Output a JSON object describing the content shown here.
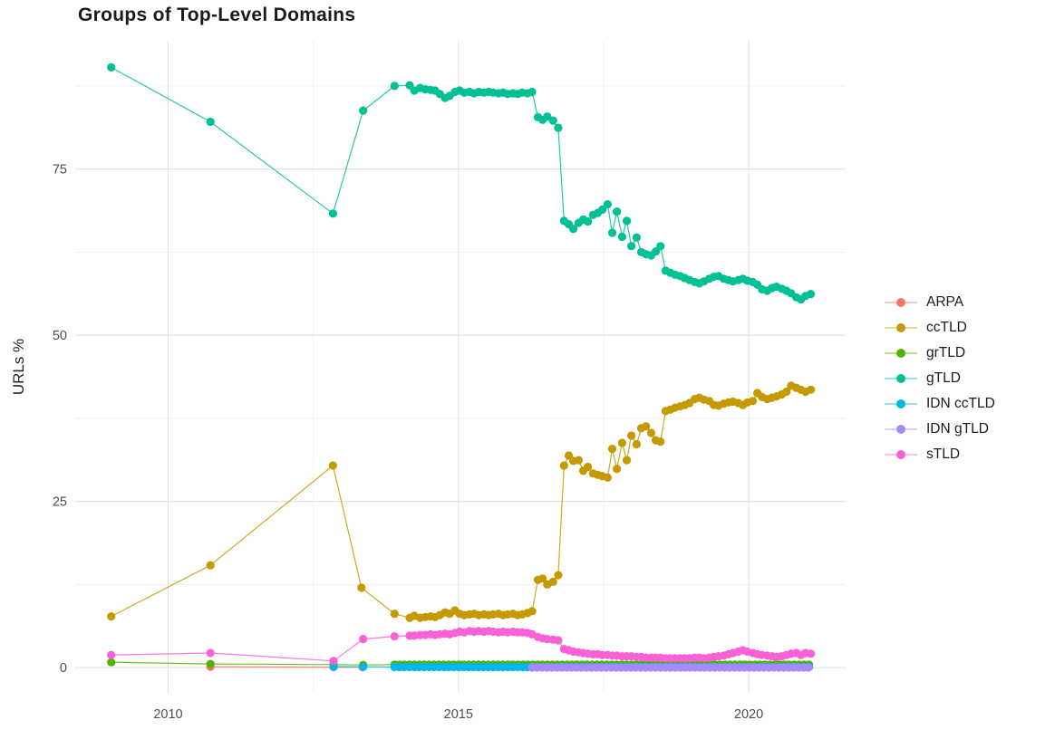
{
  "chart_data": {
    "type": "line",
    "title": "Groups of Top-Level Domains",
    "xlabel": "",
    "ylabel": "URLs %",
    "grid": true,
    "legend_position": "right",
    "xlim": [
      2008.4,
      2021.67
    ],
    "ylim": [
      -3.8,
      94.3
    ],
    "x_tick_values": [
      2010,
      2015,
      2020
    ],
    "x_tick_labels": [
      "2010",
      "2015",
      "2020"
    ],
    "x_minor_values": [
      2012.5,
      2017.5
    ],
    "y_tick_values": [
      0,
      25,
      50,
      75
    ],
    "y_tick_labels": [
      "0",
      "25",
      "50",
      "75"
    ],
    "y_minor_values": [
      12.5,
      37.5,
      62.5,
      87.5
    ],
    "x_dense": [
      2013.9,
      2014.16,
      2014.24,
      2014.34,
      2014.43,
      2014.52,
      2014.6,
      2014.68,
      2014.77,
      2014.85,
      2014.94,
      2015.02,
      2015.1,
      2015.19,
      2015.27,
      2015.35,
      2015.44,
      2015.52,
      2015.6,
      2015.69,
      2015.77,
      2015.85,
      2015.94,
      2016.02,
      2016.1,
      2016.19,
      2016.27,
      2016.37,
      2016.45,
      2016.53,
      2016.63,
      2016.72,
      2016.82,
      2016.9,
      2016.98,
      2017.07,
      2017.15,
      2017.23,
      2017.32,
      2017.4,
      2017.48,
      2017.57,
      2017.65,
      2017.73,
      2017.82,
      2017.9,
      2017.98,
      2018.07,
      2018.15,
      2018.23,
      2018.32,
      2018.4,
      2018.48,
      2018.57,
      2018.65,
      2018.73,
      2018.82,
      2018.9,
      2018.98,
      2019.07,
      2019.15,
      2019.23,
      2019.32,
      2019.4,
      2019.48,
      2019.57,
      2019.65,
      2019.73,
      2019.82,
      2019.9,
      2019.98,
      2020.07,
      2020.15,
      2020.23,
      2020.32,
      2020.4,
      2020.48,
      2020.57,
      2020.65,
      2020.73,
      2020.82,
      2020.9,
      2020.98,
      2021.07
    ],
    "series": [
      {
        "name": "ARPA",
        "color": "#F8766D",
        "points": [
          [
            2010.73,
            0.12
          ],
          [
            2012.85,
            0.07
          ],
          [
            2013.35,
            0.05
          ]
        ]
      },
      {
        "name": "ccTLD",
        "color": "#C49A00",
        "points": [
          [
            2009.02,
            7.7
          ],
          [
            2010.73,
            15.4
          ],
          [
            2012.84,
            30.4
          ],
          [
            2013.33,
            12.0
          ]
        ],
        "values": [
          8.1,
          7.5,
          7.8,
          7.5,
          7.6,
          7.7,
          7.6,
          7.9,
          8.3,
          8.1,
          8.6,
          8.1,
          7.9,
          8.0,
          8.1,
          7.9,
          8.0,
          7.9,
          8.0,
          8.1,
          7.9,
          8.0,
          8.1,
          7.9,
          8.0,
          8.2,
          8.5,
          13.2,
          13.4,
          12.5,
          12.9,
          13.9,
          30.4,
          31.9,
          31.1,
          31.2,
          29.6,
          30.2,
          29.2,
          29.0,
          28.8,
          28.6,
          32.9,
          29.9,
          33.8,
          31.2,
          34.9,
          33.6,
          36.0,
          36.3,
          35.3,
          34.2,
          34.0,
          38.6,
          38.8,
          39.1,
          39.3,
          39.5,
          39.8,
          40.4,
          40.6,
          40.3,
          40.1,
          39.5,
          39.4,
          39.7,
          39.9,
          40.0,
          39.8,
          39.5,
          39.9,
          40.1,
          41.3,
          40.7,
          40.4,
          40.6,
          40.8,
          41.1,
          41.5,
          42.4,
          42.1,
          41.8,
          41.5,
          41.8
        ]
      },
      {
        "name": "grTLD",
        "color": "#53B400",
        "points": [
          [
            2009.02,
            0.8
          ],
          [
            2010.73,
            0.55
          ],
          [
            2012.85,
            0.45
          ],
          [
            2013.36,
            0.4
          ]
        ],
        "train": {
          "from": 2013.9,
          "to": 2021.07,
          "step": 0.085,
          "value": 0.45
        }
      },
      {
        "name": "gTLD",
        "color": "#00C094",
        "points": [
          [
            2009.02,
            90.3
          ],
          [
            2010.73,
            82.1
          ],
          [
            2012.84,
            68.3
          ],
          [
            2013.36,
            83.8
          ]
        ],
        "values": [
          87.5,
          87.6,
          86.8,
          87.2,
          87.0,
          86.9,
          86.8,
          86.3,
          85.7,
          86.0,
          86.6,
          86.8,
          86.5,
          86.6,
          86.4,
          86.6,
          86.5,
          86.6,
          86.5,
          86.4,
          86.5,
          86.3,
          86.4,
          86.3,
          86.5,
          86.4,
          86.6,
          82.8,
          82.4,
          82.9,
          82.3,
          81.2,
          67.2,
          66.7,
          66.0,
          66.9,
          67.4,
          67.1,
          68.1,
          68.4,
          68.9,
          69.7,
          65.4,
          68.6,
          64.8,
          67.2,
          63.4,
          64.7,
          62.5,
          62.2,
          62.0,
          62.6,
          63.4,
          59.7,
          59.4,
          59.1,
          58.9,
          58.6,
          58.3,
          58.0,
          57.8,
          58.1,
          58.5,
          58.8,
          58.9,
          58.5,
          58.3,
          58.1,
          58.3,
          58.5,
          58.2,
          58.0,
          57.6,
          56.9,
          56.7,
          57.1,
          57.3,
          57.0,
          56.7,
          56.3,
          55.7,
          55.4,
          55.9,
          56.2
        ]
      },
      {
        "name": "IDN ccTLD",
        "color": "#00B6EB",
        "points": [
          [
            2012.85,
            0.15
          ],
          [
            2013.36,
            0.12
          ]
        ],
        "train": {
          "from": 2013.9,
          "to": 2021.07,
          "step": 0.085,
          "value": 0.08
        }
      },
      {
        "name": "IDN gTLD",
        "color": "#A58AFF",
        "points": [],
        "train": {
          "from": 2016.27,
          "to": 2021.07,
          "step": 0.085,
          "value": 0.02
        }
      },
      {
        "name": "sTLD",
        "color": "#FB61D7",
        "points": [
          [
            2009.02,
            1.9
          ],
          [
            2010.73,
            2.2
          ],
          [
            2012.85,
            1.0
          ],
          [
            2013.36,
            4.3
          ]
        ],
        "values": [
          4.7,
          4.8,
          4.8,
          4.9,
          4.9,
          5.0,
          4.9,
          5.0,
          5.1,
          5.0,
          5.2,
          5.4,
          5.3,
          5.5,
          5.4,
          5.5,
          5.4,
          5.5,
          5.4,
          5.3,
          5.4,
          5.3,
          5.4,
          5.3,
          5.3,
          5.2,
          5.0,
          4.6,
          4.4,
          4.3,
          4.2,
          4.1,
          2.8,
          2.6,
          2.4,
          2.3,
          2.2,
          2.1,
          2.0,
          2.0,
          1.9,
          1.9,
          1.8,
          1.8,
          1.7,
          1.7,
          1.7,
          1.6,
          1.6,
          1.5,
          1.5,
          1.5,
          1.5,
          1.4,
          1.4,
          1.4,
          1.4,
          1.4,
          1.4,
          1.5,
          1.5,
          1.4,
          1.5,
          1.6,
          1.7,
          1.8,
          2.0,
          2.2,
          2.4,
          2.6,
          2.4,
          2.2,
          2.0,
          1.9,
          1.8,
          1.7,
          1.6,
          1.7,
          1.9,
          2.1,
          2.2,
          1.9,
          2.2,
          2.1
        ]
      }
    ]
  }
}
